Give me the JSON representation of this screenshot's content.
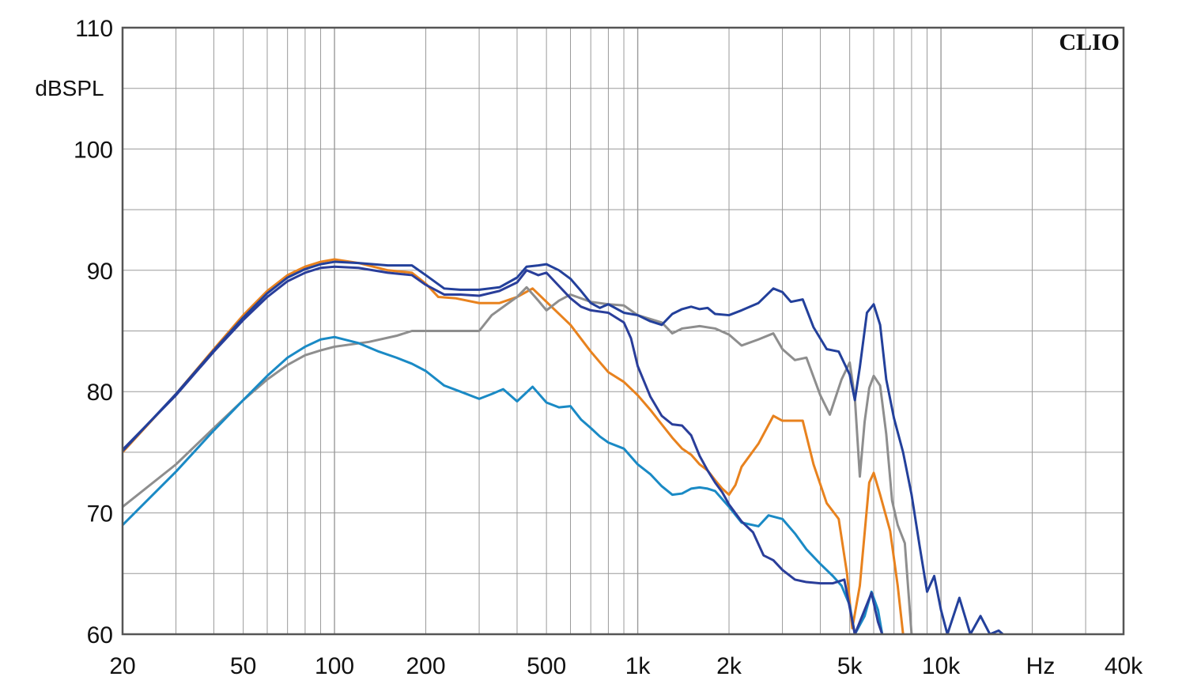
{
  "chart_data": {
    "type": "line",
    "title": "",
    "brand_label": "CLIO",
    "ylabel": "dBSPL",
    "xlabel": "Hz",
    "x_scale": "log",
    "xlim": [
      20,
      40000
    ],
    "ylim": [
      60,
      110
    ],
    "grid": true,
    "x_tick_labels": [
      {
        "v": 20,
        "t": "20"
      },
      {
        "v": 50,
        "t": "50"
      },
      {
        "v": 100,
        "t": "100"
      },
      {
        "v": 200,
        "t": "200"
      },
      {
        "v": 500,
        "t": "500"
      },
      {
        "v": 1000,
        "t": "1k"
      },
      {
        "v": 2000,
        "t": "2k"
      },
      {
        "v": 5000,
        "t": "5k"
      },
      {
        "v": 10000,
        "t": "10k"
      },
      {
        "v": 40000,
        "t": "40k"
      }
    ],
    "y_tick_labels": [
      {
        "v": 110,
        "t": "110"
      },
      {
        "v": 100,
        "t": "100"
      },
      {
        "v": 90,
        "t": "90"
      },
      {
        "v": 80,
        "t": "80"
      },
      {
        "v": 70,
        "t": "70"
      },
      {
        "v": 60,
        "t": "60"
      }
    ],
    "series": [
      {
        "color": "#e8821e",
        "points": [
          [
            20,
            75
          ],
          [
            30,
            79.8
          ],
          [
            40,
            83.5
          ],
          [
            50,
            86.3
          ],
          [
            60,
            88.3
          ],
          [
            70,
            89.6
          ],
          [
            80,
            90.3
          ],
          [
            90,
            90.7
          ],
          [
            100,
            90.9
          ],
          [
            120,
            90.6
          ],
          [
            150,
            90
          ],
          [
            180,
            89.8
          ],
          [
            200,
            88.9
          ],
          [
            220,
            87.8
          ],
          [
            250,
            87.7
          ],
          [
            300,
            87.3
          ],
          [
            350,
            87.3
          ],
          [
            400,
            87.8
          ],
          [
            450,
            88.5
          ],
          [
            500,
            87.4
          ],
          [
            600,
            85.5
          ],
          [
            700,
            83.3
          ],
          [
            800,
            81.6
          ],
          [
            900,
            80.8
          ],
          [
            1000,
            79.7
          ],
          [
            1100,
            78.5
          ],
          [
            1200,
            77.3
          ],
          [
            1300,
            76.2
          ],
          [
            1400,
            75.3
          ],
          [
            1500,
            74.8
          ],
          [
            1600,
            74
          ],
          [
            1700,
            73.5
          ],
          [
            1800,
            72.7
          ],
          [
            1900,
            72
          ],
          [
            2000,
            71.5
          ],
          [
            2100,
            72.3
          ],
          [
            2200,
            73.8
          ],
          [
            2500,
            75.7
          ],
          [
            2800,
            78
          ],
          [
            3000,
            77.6
          ],
          [
            3500,
            77.6
          ],
          [
            3800,
            74
          ],
          [
            4200,
            70.8
          ],
          [
            4600,
            69.5
          ],
          [
            4900,
            65
          ],
          [
            5100,
            60.5
          ],
          [
            5400,
            64
          ],
          [
            5800,
            72.5
          ],
          [
            6000,
            73.3
          ],
          [
            6300,
            71.5
          ],
          [
            6800,
            68.5
          ],
          [
            7200,
            64
          ],
          [
            7500,
            60
          ]
        ]
      },
      {
        "color": "#8e8e8e",
        "points": [
          [
            20,
            70.5
          ],
          [
            30,
            74
          ],
          [
            40,
            77
          ],
          [
            50,
            79.3
          ],
          [
            60,
            81
          ],
          [
            70,
            82.2
          ],
          [
            80,
            83
          ],
          [
            90,
            83.4
          ],
          [
            100,
            83.7
          ],
          [
            130,
            84.1
          ],
          [
            160,
            84.6
          ],
          [
            180,
            85
          ],
          [
            200,
            85
          ],
          [
            250,
            85
          ],
          [
            300,
            85
          ],
          [
            330,
            86.3
          ],
          [
            370,
            87.2
          ],
          [
            400,
            87.8
          ],
          [
            430,
            88.6
          ],
          [
            470,
            87.5
          ],
          [
            500,
            86.7
          ],
          [
            550,
            87.5
          ],
          [
            600,
            88
          ],
          [
            700,
            87.4
          ],
          [
            800,
            87.2
          ],
          [
            900,
            87.1
          ],
          [
            1000,
            86.3
          ],
          [
            1200,
            85.7
          ],
          [
            1300,
            84.8
          ],
          [
            1400,
            85.2
          ],
          [
            1600,
            85.4
          ],
          [
            1800,
            85.2
          ],
          [
            2000,
            84.7
          ],
          [
            2200,
            83.8
          ],
          [
            2500,
            84.3
          ],
          [
            2800,
            84.8
          ],
          [
            3000,
            83.5
          ],
          [
            3300,
            82.6
          ],
          [
            3600,
            82.8
          ],
          [
            4000,
            79.7
          ],
          [
            4300,
            78.1
          ],
          [
            4700,
            81
          ],
          [
            5000,
            82.4
          ],
          [
            5200,
            79.5
          ],
          [
            5400,
            73
          ],
          [
            5600,
            77.5
          ],
          [
            5800,
            80.3
          ],
          [
            6000,
            81.3
          ],
          [
            6300,
            80.5
          ],
          [
            6600,
            76.5
          ],
          [
            6900,
            71
          ],
          [
            7200,
            69
          ],
          [
            7600,
            67.5
          ],
          [
            8000,
            60
          ]
        ]
      },
      {
        "color": "#1a8ac5",
        "points": [
          [
            20,
            69
          ],
          [
            30,
            73.4
          ],
          [
            40,
            76.8
          ],
          [
            50,
            79.3
          ],
          [
            60,
            81.3
          ],
          [
            70,
            82.8
          ],
          [
            80,
            83.7
          ],
          [
            90,
            84.3
          ],
          [
            100,
            84.5
          ],
          [
            120,
            84
          ],
          [
            140,
            83.3
          ],
          [
            160,
            82.8
          ],
          [
            180,
            82.3
          ],
          [
            200,
            81.7
          ],
          [
            230,
            80.5
          ],
          [
            260,
            80
          ],
          [
            300,
            79.4
          ],
          [
            330,
            79.8
          ],
          [
            360,
            80.2
          ],
          [
            400,
            79.2
          ],
          [
            450,
            80.4
          ],
          [
            500,
            79.1
          ],
          [
            550,
            78.7
          ],
          [
            600,
            78.8
          ],
          [
            650,
            77.7
          ],
          [
            700,
            77
          ],
          [
            750,
            76.3
          ],
          [
            800,
            75.8
          ],
          [
            900,
            75.3
          ],
          [
            1000,
            74
          ],
          [
            1100,
            73.2
          ],
          [
            1200,
            72.2
          ],
          [
            1300,
            71.5
          ],
          [
            1400,
            71.6
          ],
          [
            1500,
            72
          ],
          [
            1600,
            72.1
          ],
          [
            1700,
            72
          ],
          [
            1800,
            71.8
          ],
          [
            2000,
            70.5
          ],
          [
            2200,
            69.2
          ],
          [
            2500,
            68.9
          ],
          [
            2700,
            69.8
          ],
          [
            3000,
            69.5
          ],
          [
            3300,
            68.3
          ],
          [
            3600,
            67
          ],
          [
            4000,
            65.8
          ],
          [
            4400,
            64.8
          ],
          [
            4700,
            64
          ],
          [
            5000,
            62.4
          ],
          [
            5200,
            60
          ],
          [
            5600,
            61.5
          ],
          [
            5900,
            63.5
          ],
          [
            6200,
            62
          ],
          [
            6400,
            60
          ]
        ]
      },
      {
        "color": "#2a3e9a",
        "points": [
          [
            20,
            75.2
          ],
          [
            30,
            79.7
          ],
          [
            40,
            83.3
          ],
          [
            50,
            85.9
          ],
          [
            60,
            87.8
          ],
          [
            70,
            89.1
          ],
          [
            80,
            89.8
          ],
          [
            90,
            90.2
          ],
          [
            100,
            90.3
          ],
          [
            120,
            90.2
          ],
          [
            150,
            89.8
          ],
          [
            180,
            89.6
          ],
          [
            200,
            88.8
          ],
          [
            230,
            88
          ],
          [
            260,
            88
          ],
          [
            300,
            87.9
          ],
          [
            350,
            88.3
          ],
          [
            400,
            89
          ],
          [
            430,
            90
          ],
          [
            470,
            89.6
          ],
          [
            500,
            89.8
          ],
          [
            550,
            88.7
          ],
          [
            600,
            87.7
          ],
          [
            650,
            87
          ],
          [
            700,
            86.7
          ],
          [
            800,
            86.5
          ],
          [
            900,
            85.7
          ],
          [
            950,
            84.4
          ],
          [
            1000,
            82.1
          ],
          [
            1100,
            79.6
          ],
          [
            1200,
            78
          ],
          [
            1300,
            77.3
          ],
          [
            1400,
            77.2
          ],
          [
            1500,
            76.4
          ],
          [
            1600,
            74.7
          ],
          [
            1700,
            73.5
          ],
          [
            1800,
            72.5
          ],
          [
            1900,
            71.7
          ],
          [
            2000,
            70.7
          ],
          [
            2200,
            69.3
          ],
          [
            2400,
            68.4
          ],
          [
            2600,
            66.5
          ],
          [
            2800,
            66.1
          ],
          [
            3000,
            65.3
          ],
          [
            3300,
            64.5
          ],
          [
            3600,
            64.3
          ],
          [
            4000,
            64.2
          ],
          [
            4400,
            64.2
          ],
          [
            4800,
            64.5
          ],
          [
            5200,
            60
          ],
          [
            5600,
            62
          ],
          [
            5900,
            63.4
          ],
          [
            6200,
            61
          ],
          [
            6400,
            60
          ]
        ]
      },
      {
        "color": "#23409b",
        "points": [
          [
            20,
            75.1
          ],
          [
            30,
            79.8
          ],
          [
            40,
            83.4
          ],
          [
            50,
            86.1
          ],
          [
            60,
            88.1
          ],
          [
            70,
            89.4
          ],
          [
            80,
            90.1
          ],
          [
            90,
            90.5
          ],
          [
            100,
            90.7
          ],
          [
            120,
            90.6
          ],
          [
            150,
            90.4
          ],
          [
            180,
            90.4
          ],
          [
            200,
            89.6
          ],
          [
            230,
            88.5
          ],
          [
            260,
            88.4
          ],
          [
            300,
            88.4
          ],
          [
            350,
            88.6
          ],
          [
            400,
            89.4
          ],
          [
            430,
            90.3
          ],
          [
            470,
            90.4
          ],
          [
            500,
            90.5
          ],
          [
            550,
            90
          ],
          [
            600,
            89.3
          ],
          [
            650,
            88.3
          ],
          [
            700,
            87.3
          ],
          [
            750,
            86.9
          ],
          [
            800,
            87.2
          ],
          [
            900,
            86.5
          ],
          [
            1000,
            86.3
          ],
          [
            1100,
            85.8
          ],
          [
            1200,
            85.5
          ],
          [
            1300,
            86.4
          ],
          [
            1400,
            86.8
          ],
          [
            1500,
            87
          ],
          [
            1600,
            86.8
          ],
          [
            1700,
            86.9
          ],
          [
            1800,
            86.4
          ],
          [
            2000,
            86.3
          ],
          [
            2200,
            86.7
          ],
          [
            2500,
            87.3
          ],
          [
            2800,
            88.5
          ],
          [
            3000,
            88.2
          ],
          [
            3200,
            87.4
          ],
          [
            3500,
            87.6
          ],
          [
            3800,
            85.3
          ],
          [
            4200,
            83.5
          ],
          [
            4600,
            83.3
          ],
          [
            5000,
            81.4
          ],
          [
            5200,
            79.3
          ],
          [
            5400,
            82
          ],
          [
            5700,
            86.5
          ],
          [
            6000,
            87.2
          ],
          [
            6300,
            85.5
          ],
          [
            6600,
            81
          ],
          [
            7000,
            77.8
          ],
          [
            7500,
            75
          ],
          [
            8000,
            71.5
          ],
          [
            8500,
            67.3
          ],
          [
            9000,
            63.5
          ],
          [
            9500,
            64.8
          ],
          [
            10000,
            62
          ],
          [
            10500,
            60
          ],
          [
            11500,
            63
          ],
          [
            12500,
            60
          ],
          [
            13500,
            61.5
          ],
          [
            14500,
            60
          ],
          [
            15500,
            60.3
          ],
          [
            16000,
            60
          ]
        ]
      }
    ]
  }
}
